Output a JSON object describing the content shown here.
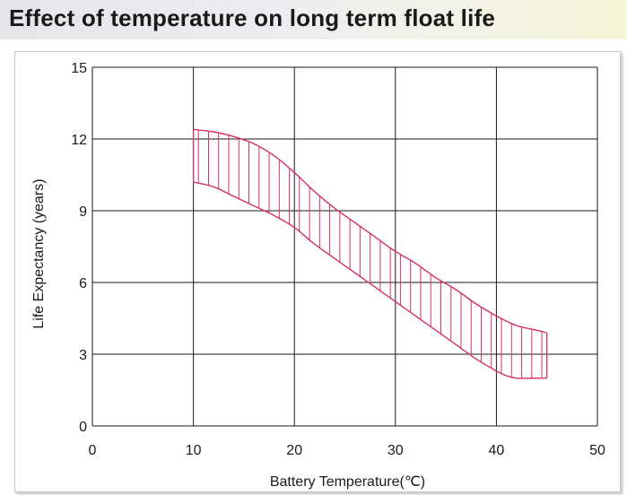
{
  "header": {
    "title": "Effect of temperature on long term float life"
  },
  "chart_data": {
    "type": "area",
    "title": "Effect of temperature on long term float life",
    "xlabel": "Battery Temperature(℃)",
    "ylabel": "Life Expectancy (years)",
    "xlim": [
      0,
      50
    ],
    "ylim": [
      0,
      15
    ],
    "x_ticks": [
      0,
      10,
      20,
      30,
      40,
      50
    ],
    "y_ticks": [
      0,
      3,
      6,
      9,
      12,
      15
    ],
    "grid": true,
    "colors": {
      "band": "#d4335f",
      "grid": "#1a1a1a"
    },
    "series": [
      {
        "x": [
          10,
          12,
          14,
          16,
          18,
          20,
          22,
          24,
          26,
          28,
          30,
          32,
          34,
          36,
          38,
          40,
          42,
          44,
          45
        ],
        "values": [
          12.4,
          12.3,
          12.1,
          11.8,
          11.3,
          10.6,
          9.8,
          9.1,
          8.5,
          7.9,
          7.3,
          6.8,
          6.2,
          5.7,
          5.1,
          4.6,
          4.2,
          4.0,
          3.9
        ]
      },
      {
        "x": [
          10,
          12,
          14,
          16,
          18,
          20,
          22,
          24,
          26,
          28,
          30,
          32,
          34,
          36,
          38,
          40,
          41,
          42,
          44,
          45
        ],
        "values": [
          10.2,
          10.0,
          9.6,
          9.2,
          8.8,
          8.3,
          7.6,
          7.0,
          6.4,
          5.8,
          5.2,
          4.6,
          4.0,
          3.4,
          2.8,
          2.3,
          2.1,
          2.0,
          2.0,
          2.0
        ]
      }
    ]
  }
}
